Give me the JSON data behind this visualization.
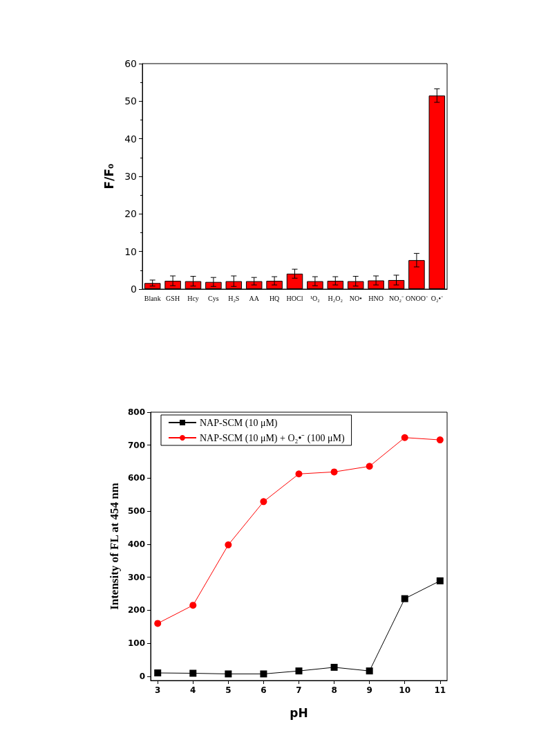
{
  "chart_data": [
    {
      "type": "bar",
      "ylabel": "F/F₀",
      "categories": [
        "Blank",
        "GSH",
        "Hcy",
        "Cys",
        "H₂S",
        "AA",
        "HQ",
        "HOCl",
        "¹O₂",
        "H₂O₂",
        "NO•",
        "HNO",
        "NO₂⁻",
        "ONOO⁻",
        "O₂•⁻"
      ],
      "values": [
        1.6,
        2.2,
        2.1,
        1.9,
        2.1,
        2.1,
        2.2,
        4.1,
        2.1,
        2.2,
        2.1,
        2.3,
        2.4,
        7.7,
        51.5
      ],
      "errors": [
        0.8,
        1.3,
        1.3,
        1.2,
        1.4,
        1.0,
        1.1,
        1.2,
        1.2,
        1.1,
        1.3,
        1.2,
        1.3,
        1.8,
        1.8
      ],
      "color": "#ff0000",
      "ylim": [
        0,
        60
      ],
      "yticks": [
        0,
        10,
        20,
        30,
        40,
        50,
        60
      ],
      "grid": false,
      "legend": false
    },
    {
      "type": "line",
      "xlabel": "pH",
      "ylabel": "Intensity of FL at 454 nm",
      "x": [
        3,
        4,
        5,
        6,
        7,
        8,
        9,
        10,
        11
      ],
      "series": [
        {
          "name": "NAP-SCM (10 μM)",
          "color": "#000000",
          "marker": "square",
          "values": [
            10,
            9,
            7,
            7,
            16,
            27,
            16,
            235,
            289
          ]
        },
        {
          "name": "NAP-SCM (10 μM) + O₂•⁻ (100 μM)",
          "color": "#ff0000",
          "marker": "circle",
          "values": [
            160,
            215,
            398,
            529,
            613,
            619,
            636,
            723,
            716
          ]
        }
      ],
      "xlim": [
        2.8,
        11.2
      ],
      "xticks": [
        3,
        4,
        5,
        6,
        7,
        8,
        9,
        10,
        11
      ],
      "ylim": [
        -13,
        800
      ],
      "yticks": [
        0,
        100,
        200,
        300,
        400,
        500,
        600,
        700,
        800
      ],
      "grid": false,
      "legend": "top left",
      "line_style": "solid"
    }
  ]
}
